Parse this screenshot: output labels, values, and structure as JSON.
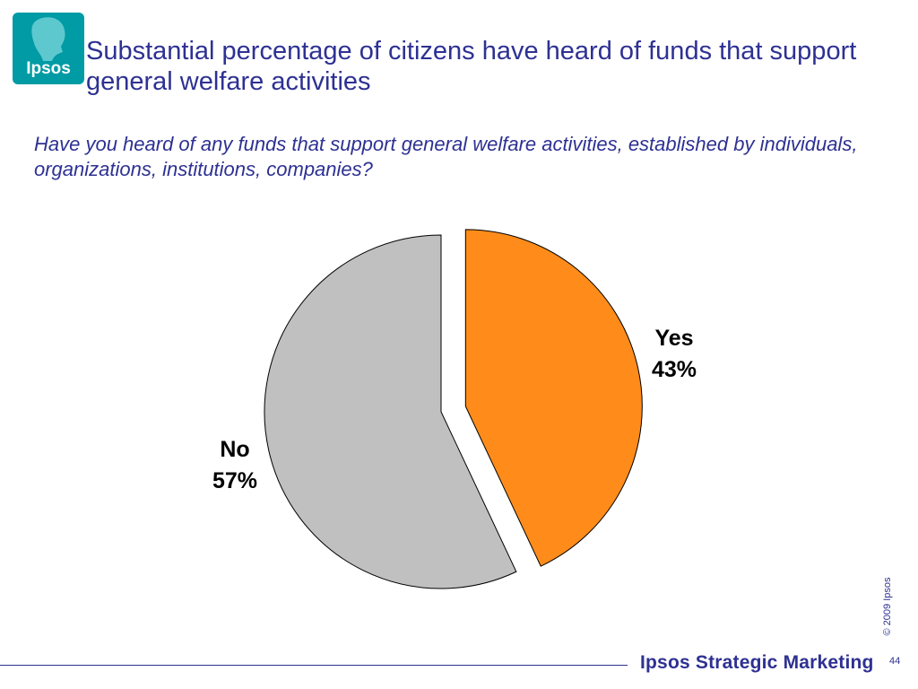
{
  "logo": {
    "text": "Ipsos",
    "color": "#009ba4"
  },
  "title": "Substantial percentage of citizens have heard of  funds that support general welfare activities",
  "question": "Have you heard of any funds that support general welfare activities, established by individuals, organizations, institutions, companies?",
  "chart_data": {
    "type": "pie",
    "title": "",
    "slices": [
      {
        "label": "Yes",
        "value": 43,
        "value_label": "43%",
        "color": "#ff8c1a",
        "exploded": true
      },
      {
        "label": "No",
        "value": 57,
        "value_label": "57%",
        "color": "#c0c0c0",
        "exploded": false
      }
    ],
    "start": "12 o'clock, clockwise"
  },
  "footer": {
    "copyright": "© 2009 Ipsos",
    "brand": "Ipsos Strategic Marketing",
    "page_number": "44"
  }
}
